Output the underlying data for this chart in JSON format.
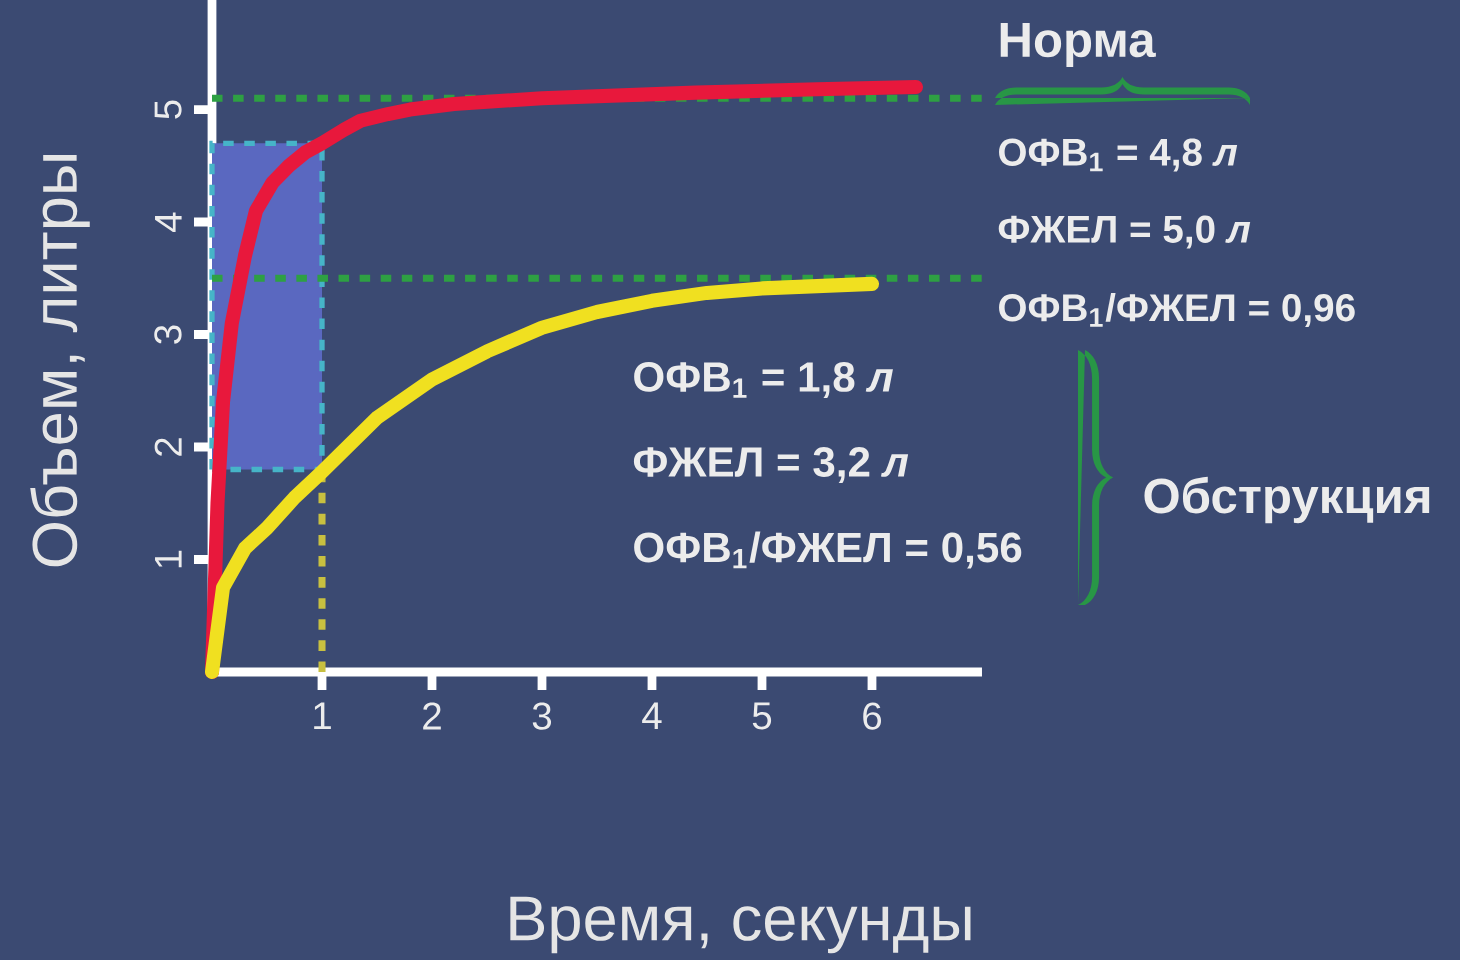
{
  "chart_data": {
    "type": "line",
    "xlabel": "Время, секунды",
    "ylabel": "Объем, литры",
    "series": [
      {
        "color": "#e8183c",
        "x": [
          0,
          0.05,
          0.1,
          0.18,
          0.3,
          0.4,
          0.55,
          0.7,
          0.85,
          1.0,
          1.2,
          1.35,
          1.6,
          1.8,
          2.2,
          3.0,
          4.4,
          5.5,
          6.4
        ],
        "values": [
          0,
          1.5,
          2.4,
          3.1,
          3.7,
          4.1,
          4.35,
          4.5,
          4.62,
          4.7,
          4.82,
          4.9,
          4.96,
          5.0,
          5.05,
          5.1,
          5.15,
          5.18,
          5.2
        ]
      },
      {
        "color": "#f0e020",
        "x": [
          0,
          0.1,
          0.3,
          0.5,
          0.75,
          1.0,
          1.5,
          2.0,
          2.5,
          3.0,
          3.5,
          4.0,
          4.5,
          5.0,
          5.5,
          6.0
        ],
        "values": [
          0,
          0.75,
          1.1,
          1.28,
          1.55,
          1.78,
          2.26,
          2.6,
          2.85,
          3.06,
          3.2,
          3.3,
          3.37,
          3.41,
          3.43,
          3.45
        ]
      }
    ],
    "xlim": [
      0,
      7
    ],
    "ylim": [
      0,
      6
    ],
    "xticks": [
      1,
      2,
      3,
      4,
      5,
      6
    ],
    "yticks": [
      1,
      2,
      3,
      4,
      5
    ],
    "grid": false,
    "line_style": "solid",
    "marker": "none",
    "ref_lines": [
      {
        "axis": "y",
        "value": 5.1,
        "color": "#2ea043",
        "line_style": "dashed"
      },
      {
        "axis": "y",
        "value": 3.5,
        "color": "#2ea043",
        "line_style": "dashed"
      },
      {
        "axis": "x",
        "value": 1,
        "color": "#c8c040",
        "line_style": "dashed"
      }
    ],
    "bands": [
      {
        "axis": "y",
        "from": 1.8,
        "to": 4.7,
        "color": "#5a68c0"
      }
    ],
    "annotations": [
      "Норма",
      "ОФВ$_{1}$ = 4,8 *л*",
      "ФЖЕЛ = 5,0 *л*",
      "ОФВ$_{1}$/ФЖЕЛ = 0,96",
      "ОФВ$_{1}$ = 1,8 *л*",
      "ФЖЕЛ = 3,2 *л*",
      "ОФВ$_{1}$/ФЖЕЛ = 0,56",
      "Обструкция"
    ]
  }
}
